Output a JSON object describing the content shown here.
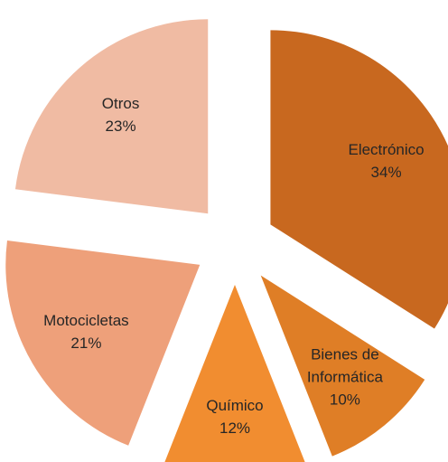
{
  "chart_data": {
    "type": "pie",
    "categories": [
      "Electrónico",
      "Bienes de Informática",
      "Químico",
      "Motocicletas",
      "Otros"
    ],
    "values": [
      34,
      10,
      12,
      21,
      23
    ],
    "value_labels": [
      "34%",
      "10%",
      "12%",
      "21%",
      "23%"
    ],
    "colors": [
      "#c8681f",
      "#df7e26",
      "#f18d30",
      "#eea07a",
      "#f0bba3"
    ]
  }
}
